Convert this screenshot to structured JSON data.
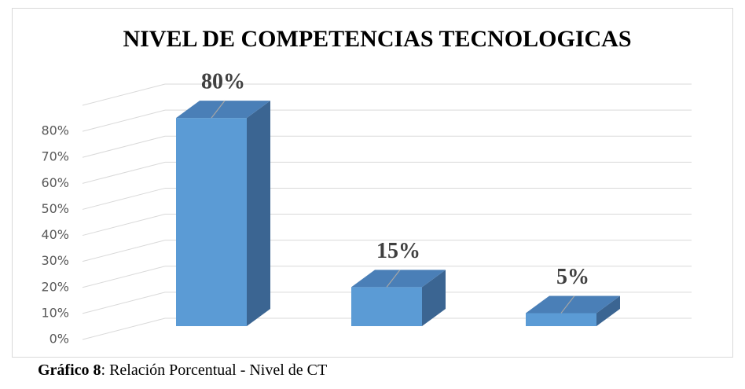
{
  "chart_data": {
    "type": "bar3d",
    "title": "NIVEL DE COMPETENCIAS TECNOLOGICAS",
    "categories": [
      null,
      null,
      null
    ],
    "values": [
      80,
      15,
      5
    ],
    "value_labels": [
      "80%",
      "15%",
      "5%"
    ],
    "color": "#5b9bd5",
    "ylim": [
      0,
      90
    ],
    "yticks": [
      {
        "value": 0,
        "label": "0%"
      },
      {
        "value": 10,
        "label": "10%"
      },
      {
        "value": 20,
        "label": "20%"
      },
      {
        "value": 30,
        "label": "30%"
      },
      {
        "value": 40,
        "label": "40%"
      },
      {
        "value": 50,
        "label": "50%"
      },
      {
        "value": 60,
        "label": "60%"
      },
      {
        "value": 70,
        "label": "70%"
      },
      {
        "value": 80,
        "label": "80%"
      }
    ],
    "grid": true
  },
  "caption": {
    "label": "Gráfico 8",
    "text": ": Relación Porcentual - Nivel de CT"
  }
}
